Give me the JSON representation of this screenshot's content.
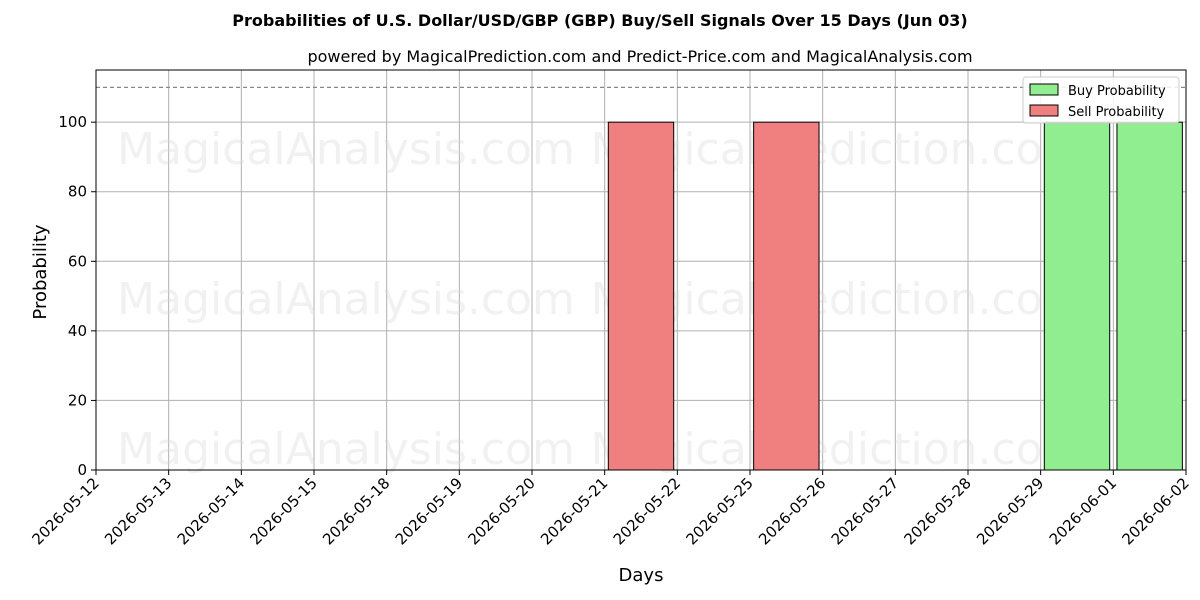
{
  "chart_data": {
    "type": "bar",
    "title": "Probabilities of U.S. Dollar/USD/GBP (GBP) Buy/Sell Signals Over 15 Days (Jun 03)",
    "subtitle": "powered by MagicalPrediction.com and Predict-Price.com and MagicalAnalysis.com",
    "xlabel": "Days",
    "ylabel": "Probability",
    "ylim": [
      0,
      115
    ],
    "yticks": [
      0,
      20,
      40,
      60,
      80,
      100
    ],
    "reference_line": 110,
    "categories": [
      "2026-05-12",
      "2026-05-13",
      "2026-05-14",
      "2026-05-15",
      "2026-05-18",
      "2026-05-19",
      "2026-05-20",
      "2026-05-21",
      "2026-05-22",
      "2026-05-25",
      "2026-05-26",
      "2026-05-27",
      "2026-05-28",
      "2026-05-29",
      "2026-06-01",
      "2026-06-02"
    ],
    "series": [
      {
        "name": "Buy Probability",
        "color": "#90ee90",
        "values": [
          0,
          0,
          0,
          0,
          0,
          0,
          0,
          0,
          0,
          0,
          0,
          0,
          0,
          100,
          100,
          0
        ]
      },
      {
        "name": "Sell Probability",
        "color": "#f08080",
        "values": [
          0,
          0,
          0,
          0,
          0,
          0,
          0,
          100,
          0,
          100,
          0,
          0,
          0,
          0,
          0,
          0
        ]
      }
    ],
    "grid": true,
    "legend_position": "top-right",
    "watermarks": [
      "MagicalAnalysis.com",
      "MagicalPrediction.com"
    ]
  }
}
